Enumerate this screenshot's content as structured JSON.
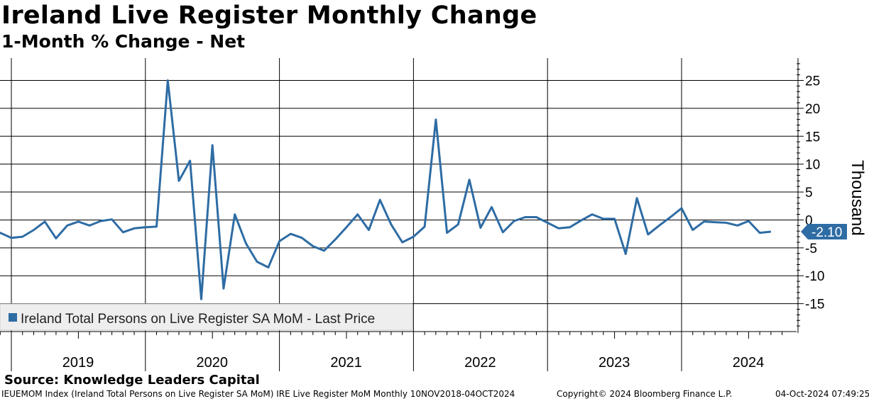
{
  "header": {
    "title": "Ireland Live Register Monthly Change",
    "subtitle": "1-Month % Change - Net"
  },
  "chart_data": {
    "type": "line",
    "y_axis_label": "Thousand",
    "ylim": [
      -20,
      29
    ],
    "y_ticks": [
      25,
      20,
      15,
      10,
      5,
      0,
      -5,
      -10,
      -15
    ],
    "y_tick_labels": [
      "25",
      "20",
      "15",
      "10",
      "5",
      "0",
      "-5",
      "-10",
      "-15"
    ],
    "years": [
      "2019",
      "2020",
      "2021",
      "2022",
      "2023",
      "2024"
    ],
    "x_start": 2018.8333,
    "x_end": 2024.75,
    "series": [
      {
        "name": "Ireland Total Persons on Live Register SA MoM - Last Price",
        "color": "#2e6ca4",
        "start": "2018-11",
        "values": [
          -3.2,
          -2.3,
          -3.2,
          -3.0,
          -1.8,
          -0.3,
          -3.3,
          -1.0,
          -0.3,
          -1.0,
          -0.2,
          0.1,
          -2.2,
          -1.5,
          -1.3,
          -1.2,
          25.0,
          7.0,
          10.6,
          -14.2,
          13.4,
          -12.3,
          1.0,
          -4.2,
          -7.5,
          -8.5,
          -3.8,
          -2.5,
          -3.2,
          -4.7,
          -5.5,
          -3.5,
          -1.3,
          1.0,
          -1.8,
          3.6,
          -0.8,
          -4.0,
          -3.0,
          -1.2,
          18.0,
          -2.3,
          -0.8,
          7.2,
          -1.4,
          2.3,
          -2.2,
          -0.2,
          0.5,
          0.5,
          -0.5,
          -1.5,
          -1.3,
          -0.1,
          1.0,
          0.2,
          0.2,
          -6.1,
          3.9,
          -2.6,
          -1.0,
          0.5,
          2.1,
          -1.8,
          -0.3,
          -0.4,
          -0.5,
          -1.0,
          -0.2,
          -2.3,
          -2.1
        ]
      }
    ],
    "last_value": -2.1,
    "last_value_label": "-2.10",
    "legend": {
      "position": "bottom-left",
      "label": "Ireland Total Persons on Live Register SA MoM - Last Price"
    }
  },
  "source": "Source: Knowledge Leaders Capital",
  "footer": {
    "left": "IEUEMOM Index (Ireland Total Persons on Live Register SA MoM) IRE Live Register MoM  Monthly 10NOV2018-04OCT2024",
    "middle": "Copyright© 2024 Bloomberg Finance L.P.",
    "right": "04-Oct-2024 07:49:25"
  },
  "colors": {
    "line": "#2e6ca4",
    "grid": "#000000",
    "legend_bg": "#eeeeee",
    "last_price_bg": "#2e6ca4"
  }
}
